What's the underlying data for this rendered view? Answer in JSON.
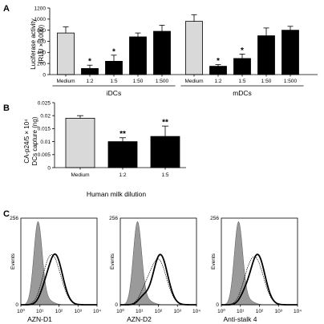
{
  "chart_data": [
    {
      "panel": "A",
      "type": "bar",
      "ylabel": "Luciferase activity (RLU × 1000)",
      "ylabel_lines": [
        "Luciferase activity",
        "(RLU × 1000)"
      ],
      "yticks": [
        "0",
        "200",
        "400",
        "600",
        "800",
        "1000",
        "1200"
      ],
      "ylim": [
        0,
        1200
      ],
      "colors": {
        "medium": "#d9d9d9",
        "treated": "#000000"
      },
      "groups": [
        {
          "label": "iDCs",
          "categories": [
            "Medium",
            "1:2",
            "1:5",
            "1:50",
            "1:500"
          ],
          "values": [
            750,
            110,
            240,
            680,
            780
          ],
          "errors": [
            110,
            60,
            110,
            70,
            110
          ],
          "significance": [
            "",
            "*",
            "*",
            "",
            ""
          ]
        },
        {
          "label": "mDCs",
          "categories": [
            "Medium",
            "1:2",
            "1:5",
            "1:50",
            "1:500"
          ],
          "values": [
            960,
            150,
            290,
            700,
            800
          ],
          "errors": [
            120,
            30,
            80,
            140,
            70
          ],
          "significance": [
            "",
            "*",
            "*",
            "",
            ""
          ]
        }
      ]
    },
    {
      "panel": "B",
      "type": "bar",
      "ylabel": "CA-p24/5 × 10^4 DCs capture (ng)",
      "ylabel_lines": [
        "CA-p24/5 × 10⁴",
        "DCs capture (ng)"
      ],
      "xlabel": "Human milk dilution",
      "yticks": [
        "0",
        "0.005",
        "0.01",
        "0.015",
        "0.02",
        "0.025"
      ],
      "ylim": [
        0,
        0.025
      ],
      "categories": [
        "Medium",
        "1:2",
        "1:5"
      ],
      "values": [
        0.019,
        0.01,
        0.012
      ],
      "errors": [
        0.001,
        0.0015,
        0.004
      ],
      "significance": [
        "",
        "**",
        "**"
      ],
      "colors": {
        "medium": "#d9d9d9",
        "treated": "#000000"
      }
    },
    {
      "panel": "C",
      "type": "histogram",
      "ylabel": "Events",
      "ymax_label": "256",
      "ymin_label": "0",
      "xticks": [
        "10⁰",
        "10¹",
        "10²",
        "10³",
        "10⁴"
      ],
      "panels": [
        {
          "xlabel": "AZN-D1",
          "isotype_peak_log": 0.9,
          "stain_peak_log": 1.8
        },
        {
          "xlabel": "AZN-D2",
          "isotype_peak_log": 0.9,
          "stain_peak_log": 2.1
        },
        {
          "xlabel": "Anti-stalk 4",
          "isotype_peak_log": 0.9,
          "stain_peak_log": 1.9
        }
      ]
    }
  ]
}
